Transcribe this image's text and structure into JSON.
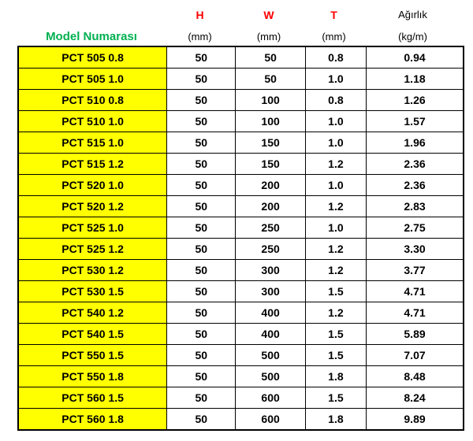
{
  "table": {
    "model_header": "Model Numarası",
    "columns": [
      {
        "label": "H",
        "unit": "(mm)",
        "color": "#FF0000"
      },
      {
        "label": "W",
        "unit": "(mm)",
        "color": "#FF0000"
      },
      {
        "label": "T",
        "unit": "(mm)",
        "color": "#FF0000"
      },
      {
        "label": "Ağırlık",
        "unit": "(kg/m)",
        "color": "#000000"
      }
    ],
    "rows": [
      {
        "model": "PCT 505 0.8",
        "h": "50",
        "w": "50",
        "t": "0.8",
        "weight": "0.94"
      },
      {
        "model": "PCT 505 1.0",
        "h": "50",
        "w": "50",
        "t": "1.0",
        "weight": "1.18"
      },
      {
        "model": "PCT 510 0.8",
        "h": "50",
        "w": "100",
        "t": "0.8",
        "weight": "1.26"
      },
      {
        "model": "PCT 510 1.0",
        "h": "50",
        "w": "100",
        "t": "1.0",
        "weight": "1.57"
      },
      {
        "model": "PCT 515 1.0",
        "h": "50",
        "w": "150",
        "t": "1.0",
        "weight": "1.96"
      },
      {
        "model": "PCT 515 1.2",
        "h": "50",
        "w": "150",
        "t": "1.2",
        "weight": "2.36"
      },
      {
        "model": "PCT 520 1.0",
        "h": "50",
        "w": "200",
        "t": "1.0",
        "weight": "2.36"
      },
      {
        "model": "PCT 520 1.2",
        "h": "50",
        "w": "200",
        "t": "1.2",
        "weight": "2.83"
      },
      {
        "model": "PCT 525 1.0",
        "h": "50",
        "w": "250",
        "t": "1.0",
        "weight": "2.75"
      },
      {
        "model": "PCT 525 1.2",
        "h": "50",
        "w": "250",
        "t": "1.2",
        "weight": "3.30"
      },
      {
        "model": "PCT 530 1.2",
        "h": "50",
        "w": "300",
        "t": "1.2",
        "weight": "3.77"
      },
      {
        "model": "PCT 530 1.5",
        "h": "50",
        "w": "300",
        "t": "1.5",
        "weight": "4.71"
      },
      {
        "model": "PCT 540 1.2",
        "h": "50",
        "w": "400",
        "t": "1.2",
        "weight": "4.71"
      },
      {
        "model": "PCT 540 1.5",
        "h": "50",
        "w": "400",
        "t": "1.5",
        "weight": "5.89"
      },
      {
        "model": "PCT 550 1.5",
        "h": "50",
        "w": "500",
        "t": "1.5",
        "weight": "7.07"
      },
      {
        "model": "PCT 550 1.8",
        "h": "50",
        "w": "500",
        "t": "1.8",
        "weight": "8.48"
      },
      {
        "model": "PCT 560 1.5",
        "h": "50",
        "w": "600",
        "t": "1.5",
        "weight": "8.24"
      },
      {
        "model": "PCT 560 1.8",
        "h": "50",
        "w": "600",
        "t": "1.8",
        "weight": "9.89"
      }
    ]
  },
  "colors": {
    "model_header_green": "#00B050",
    "value_header_red": "#FF0000",
    "model_cell_yellow": "#FFFF00",
    "border_black": "#000000"
  },
  "chart_data": {
    "type": "table",
    "title": "",
    "columns": [
      "Model Numarası",
      "H (mm)",
      "W (mm)",
      "T (mm)",
      "Ağırlık (kg/m)"
    ],
    "rows": [
      [
        "PCT 505 0.8",
        50,
        50,
        0.8,
        0.94
      ],
      [
        "PCT 505 1.0",
        50,
        50,
        1.0,
        1.18
      ],
      [
        "PCT 510 0.8",
        50,
        100,
        0.8,
        1.26
      ],
      [
        "PCT 510 1.0",
        50,
        100,
        1.0,
        1.57
      ],
      [
        "PCT 515 1.0",
        50,
        150,
        1.0,
        1.96
      ],
      [
        "PCT 515 1.2",
        50,
        150,
        1.2,
        2.36
      ],
      [
        "PCT 520 1.0",
        50,
        200,
        1.0,
        2.36
      ],
      [
        "PCT 520 1.2",
        50,
        200,
        1.2,
        2.83
      ],
      [
        "PCT 525 1.0",
        50,
        250,
        1.0,
        2.75
      ],
      [
        "PCT 525 1.2",
        50,
        250,
        1.2,
        3.3
      ],
      [
        "PCT 530 1.2",
        50,
        300,
        1.2,
        3.77
      ],
      [
        "PCT 530 1.5",
        50,
        300,
        1.5,
        4.71
      ],
      [
        "PCT 540 1.2",
        50,
        400,
        1.2,
        4.71
      ],
      [
        "PCT 540 1.5",
        50,
        400,
        1.5,
        5.89
      ],
      [
        "PCT 550 1.5",
        50,
        500,
        1.5,
        7.07
      ],
      [
        "PCT 550 1.8",
        50,
        500,
        1.8,
        8.48
      ],
      [
        "PCT 560 1.5",
        50,
        600,
        1.5,
        8.24
      ],
      [
        "PCT 560 1.8",
        50,
        600,
        1.8,
        9.89
      ]
    ]
  }
}
